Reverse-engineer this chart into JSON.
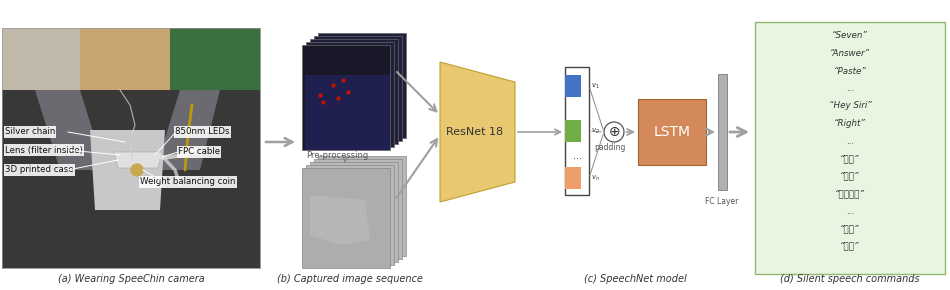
{
  "fig_width": 9.5,
  "fig_height": 2.9,
  "dpi": 100,
  "bg_color": "#ffffff",
  "caption_a": "(a) Wearing SpeeChin camera",
  "caption_b": "(b) Captured image sequence",
  "caption_c": "(c) SpeechNet model",
  "caption_d": "(d) Silent speech commands",
  "labels_left": [
    "Silver chain",
    "Lens (filter inside)",
    "3D printed case"
  ],
  "labels_right": [
    "850nm LEDs",
    "FPC cable",
    "Weight balancing coin"
  ],
  "resnet_label": "ResNet 18",
  "lstm_label": "LSTM",
  "padding_label": "padding",
  "fc_label": "FC Layer",
  "preprocessing_label": "Pre-processing",
  "resnet_color": "#E8C870",
  "lstm_color": "#D4895A",
  "blue_bar_color": "#4472C4",
  "green_bar_color": "#70AD47",
  "orange_bar_color": "#ED9E6A",
  "box_color": "#E8F5E0",
  "box_border_color": "#90B870",
  "commands_line1": "“Seven”",
  "commands_line2": "“Answer”",
  "commands_line3": "“Paste”",
  "commands_dots1": "...",
  "commands_line4": "“Hey Siri”",
  "commands_line5": "“Right”",
  "commands_dots2": "...",
  "commands_line6": "“返回”",
  "commands_line7": "“搜索”",
  "commands_line8": "“打开相机”",
  "commands_dots3": "...",
  "commands_line9": "“复制”",
  "commands_line10": "“挂断”",
  "arrow_color": "#A0A0A0",
  "arrow_color_dark": "#888888",
  "text_color": "#404040",
  "label_bg": "#ffffff",
  "photo_dark": "#4a4a4a",
  "photo_jacket": "#3a3a3a",
  "photo_skin": "#c8a070",
  "photo_green": "#3a7040",
  "photo_shirt": "#888080",
  "photo_inner": "#c8c0b8",
  "frame_dark_bg": "#18182a",
  "frame_dark_edge": "#666666",
  "frame_gray_bg": "#a8a8a8",
  "frame_gray_edge": "#888888"
}
